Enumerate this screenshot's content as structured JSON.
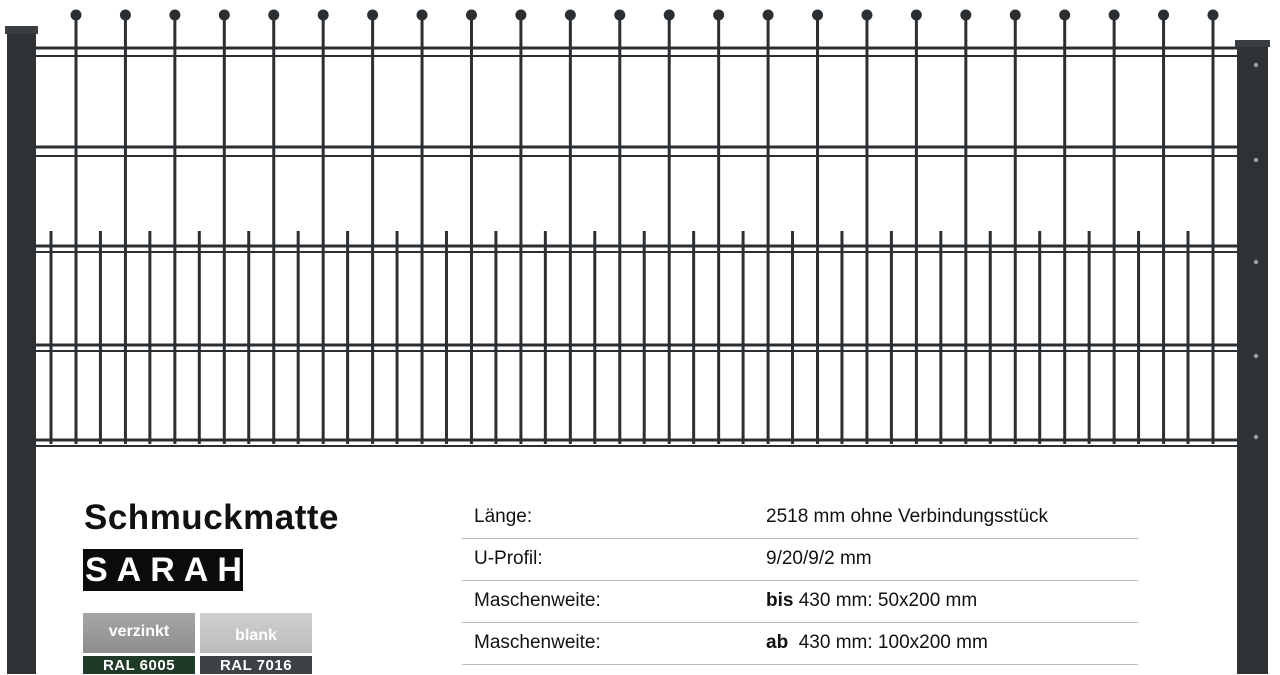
{
  "product": {
    "title": "Schmuckmatte",
    "name": "SARAH"
  },
  "finishes": [
    {
      "label": "verzinkt",
      "ral": "RAL 6005"
    },
    {
      "label": "blank",
      "ral": "RAL 7016"
    }
  ],
  "specs": [
    {
      "label": "Länge:",
      "prefix": "",
      "value": "2518 mm ohne Verbindungsstück"
    },
    {
      "label": "U-Profil:",
      "prefix": "",
      "value": "9/20/9/2 mm"
    },
    {
      "label": "Maschenweite:",
      "prefix": "bis",
      "value": " 430 mm: 50x200 mm"
    },
    {
      "label": "Maschenweite:",
      "prefix": "ab",
      "value": "  430 mm: 100x200 mm"
    }
  ],
  "colors": {
    "fence": "#2b2f32",
    "post": "#2e3235",
    "ral_6005": "#1f3a26",
    "ral_7016": "#3d4244"
  }
}
